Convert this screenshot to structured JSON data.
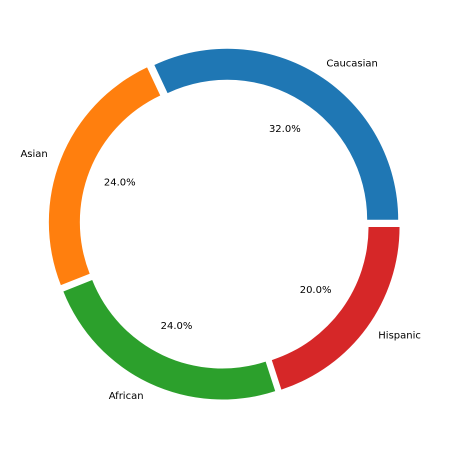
{
  "chart_data": {
    "type": "pie",
    "style": "donut",
    "title": "",
    "categories": [
      "Caucasian",
      "Asian",
      "African",
      "Hispanic"
    ],
    "values": [
      32.0,
      24.0,
      24.0,
      20.0
    ],
    "percent_labels": [
      "32.0%",
      "24.0%",
      "24.0%",
      "20.0%"
    ],
    "colors": [
      "#1f77b4",
      "#ff7f0e",
      "#2ca02c",
      "#d62728"
    ],
    "start_angle_deg": 0,
    "direction": "counterclockwise",
    "exploded": true,
    "legend": "none"
  }
}
